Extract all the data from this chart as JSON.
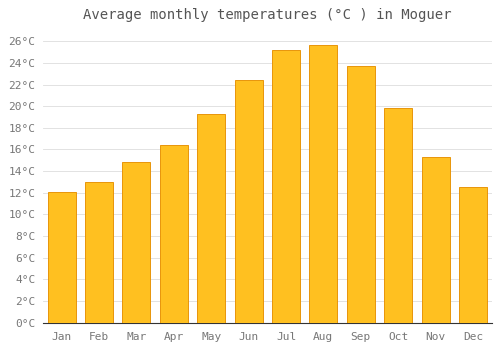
{
  "title": "Average monthly temperatures (°C ) in Moguer",
  "months": [
    "Jan",
    "Feb",
    "Mar",
    "Apr",
    "May",
    "Jun",
    "Jul",
    "Aug",
    "Sep",
    "Oct",
    "Nov",
    "Dec"
  ],
  "temperatures": [
    12.1,
    13.0,
    14.8,
    16.4,
    19.3,
    22.4,
    25.2,
    25.7,
    23.7,
    19.8,
    15.3,
    12.5
  ],
  "bar_color": "#FFC020",
  "bar_edge_color": "#E8950A",
  "background_color": "#FFFFFF",
  "grid_color": "#DDDDDD",
  "ylim": [
    0,
    27
  ],
  "ytick_step": 2,
  "title_fontsize": 10,
  "tick_fontsize": 8,
  "font_family": "monospace",
  "tick_color": "#777777",
  "title_color": "#555555",
  "spine_color": "#333333",
  "bar_width": 0.75
}
